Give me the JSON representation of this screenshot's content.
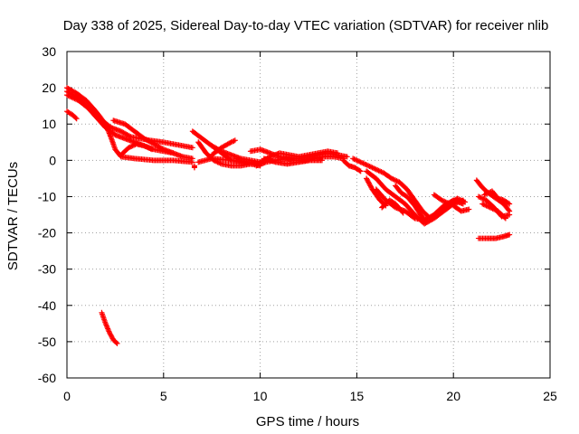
{
  "chart_data": {
    "type": "scatter",
    "title": "Day 338 of 2025, Sidereal Day-to-day VTEC variation (SDTVAR) for receiver nlib",
    "xlabel": "GPS time / hours",
    "ylabel": "SDTVAR / TECUs",
    "xlim": [
      0,
      25
    ],
    "ylim": [
      -60,
      30
    ],
    "xticks": [
      0,
      5,
      10,
      15,
      20,
      25
    ],
    "yticks": [
      -60,
      -50,
      -40,
      -30,
      -20,
      -10,
      0,
      10,
      20,
      30
    ],
    "grid": true,
    "marker": "+",
    "series": [
      {
        "name": "SDTVAR",
        "color": "#ff0000",
        "tracks": [
          [
            [
              0.0,
              13.5
            ],
            [
              0.3,
              12.5
            ],
            [
              0.5,
              11.5
            ]
          ],
          [
            [
              0.0,
              20.0
            ],
            [
              0.5,
              18.5
            ],
            [
              1.0,
              16.5
            ],
            [
              1.5,
              13.5
            ],
            [
              2.0,
              10.0
            ],
            [
              2.3,
              6.0
            ],
            [
              2.5,
              3.0
            ],
            [
              2.8,
              1.0
            ],
            [
              3.5,
              0.5
            ],
            [
              4.5,
              0.0
            ],
            [
              5.5,
              0.0
            ],
            [
              6.5,
              -0.5
            ]
          ],
          [
            [
              0.0,
              19.0
            ],
            [
              0.5,
              17.5
            ],
            [
              1.0,
              15.0
            ],
            [
              1.5,
              12.0
            ],
            [
              2.0,
              9.0
            ],
            [
              2.5,
              7.0
            ],
            [
              3.0,
              6.0
            ],
            [
              3.5,
              5.0
            ],
            [
              4.0,
              4.0
            ],
            [
              4.5,
              3.0
            ],
            [
              5.0,
              2.5
            ],
            [
              5.5,
              2.0
            ],
            [
              6.0,
              1.0
            ],
            [
              6.5,
              0.5
            ]
          ],
          [
            [
              0.0,
              18.0
            ],
            [
              0.6,
              16.5
            ],
            [
              1.2,
              14.0
            ],
            [
              1.8,
              11.0
            ],
            [
              2.3,
              9.0
            ],
            [
              2.8,
              8.0
            ],
            [
              3.3,
              6.5
            ],
            [
              3.8,
              6.0
            ],
            [
              4.3,
              5.5
            ],
            [
              5.0,
              5.0
            ],
            [
              5.5,
              4.5
            ],
            [
              6.0,
              4.0
            ],
            [
              6.5,
              3.5
            ]
          ],
          [
            [
              2.4,
              11.0
            ],
            [
              3.0,
              10.0
            ],
            [
              3.5,
              8.0
            ],
            [
              4.0,
              6.0
            ],
            [
              4.5,
              4.5
            ],
            [
              5.0,
              3.0
            ],
            [
              5.5,
              2.0
            ]
          ],
          [
            [
              2.8,
              1.5
            ],
            [
              3.2,
              3.5
            ],
            [
              3.6,
              4.5
            ],
            [
              4.0,
              4.0
            ],
            [
              4.4,
              3.0
            ]
          ],
          [
            [
              6.6,
              -1.5
            ],
            [
              6.6,
              -2.0
            ]
          ],
          [
            [
              6.5,
              8.0
            ],
            [
              7.0,
              6.0
            ],
            [
              7.5,
              4.0
            ],
            [
              8.0,
              2.0
            ],
            [
              8.5,
              0.0
            ],
            [
              9.0,
              -0.5
            ],
            [
              9.5,
              -1.0
            ],
            [
              10.0,
              -1.5
            ]
          ],
          [
            [
              6.8,
              5.0
            ],
            [
              7.2,
              2.0
            ],
            [
              7.6,
              0.0
            ],
            [
              8.0,
              -1.0
            ],
            [
              8.5,
              -1.5
            ],
            [
              9.0,
              -1.5
            ],
            [
              9.5,
              -1.0
            ],
            [
              10.0,
              -1.0
            ]
          ],
          [
            [
              7.5,
              4.0
            ],
            [
              8.0,
              2.5
            ],
            [
              8.5,
              1.5
            ],
            [
              9.0,
              0.5
            ],
            [
              9.5,
              0.0
            ],
            [
              10.0,
              -0.5
            ]
          ],
          [
            [
              6.8,
              -0.5
            ],
            [
              7.5,
              0.5
            ],
            [
              8.5,
              0.0
            ],
            [
              9.5,
              -0.5
            ],
            [
              10.0,
              -1.0
            ]
          ],
          [
            [
              7.5,
              1.5
            ],
            [
              8.0,
              3.5
            ],
            [
              8.5,
              5.0
            ],
            [
              8.7,
              5.5
            ]
          ],
          [
            [
              1.8,
              -42.0
            ],
            [
              2.0,
              -45.0
            ],
            [
              2.2,
              -47.5
            ],
            [
              2.4,
              -49.5
            ],
            [
              2.6,
              -50.5
            ]
          ],
          [
            [
              9.5,
              2.5
            ],
            [
              10.0,
              3.0
            ],
            [
              10.5,
              2.0
            ],
            [
              11.0,
              1.0
            ],
            [
              11.5,
              0.5
            ],
            [
              12.0,
              0.5
            ],
            [
              12.5,
              1.0
            ],
            [
              13.0,
              1.5
            ],
            [
              13.5,
              2.0
            ],
            [
              14.0,
              1.5
            ],
            [
              14.5,
              1.0
            ]
          ],
          [
            [
              9.8,
              -1.5
            ],
            [
              10.3,
              -0.5
            ],
            [
              10.8,
              0.0
            ],
            [
              11.3,
              0.5
            ],
            [
              11.8,
              0.0
            ],
            [
              12.3,
              0.0
            ],
            [
              12.8,
              0.5
            ],
            [
              13.3,
              1.0
            ],
            [
              13.8,
              1.0
            ],
            [
              14.3,
              0.5
            ]
          ],
          [
            [
              10.0,
              -0.5
            ],
            [
              10.5,
              1.0
            ],
            [
              11.0,
              2.0
            ],
            [
              11.5,
              1.5
            ],
            [
              12.0,
              1.0
            ],
            [
              12.5,
              1.5
            ],
            [
              13.0,
              2.0
            ],
            [
              13.5,
              2.5
            ],
            [
              14.0,
              2.0
            ]
          ],
          [
            [
              10.2,
              0.5
            ],
            [
              10.8,
              -0.5
            ],
            [
              11.4,
              -1.0
            ],
            [
              12.0,
              -0.5
            ],
            [
              12.6,
              0.0
            ],
            [
              13.2,
              0.0
            ]
          ],
          [
            [
              14.3,
              0.0
            ],
            [
              14.6,
              -1.5
            ],
            [
              14.9,
              -2.0
            ],
            [
              15.2,
              -3.0
            ]
          ],
          [
            [
              14.8,
              0.5
            ],
            [
              15.2,
              -0.5
            ],
            [
              15.6,
              -1.5
            ],
            [
              16.0,
              -2.5
            ],
            [
              16.4,
              -3.5
            ],
            [
              16.8,
              -5.0
            ],
            [
              17.2,
              -6.0
            ],
            [
              17.6,
              -8.0
            ],
            [
              18.0,
              -11.0
            ],
            [
              18.4,
              -14.0
            ],
            [
              18.8,
              -16.0
            ],
            [
              19.2,
              -14.0
            ],
            [
              19.6,
              -13.0
            ],
            [
              20.0,
              -11.0
            ],
            [
              20.5,
              -12.0
            ]
          ],
          [
            [
              15.5,
              -3.0
            ],
            [
              16.0,
              -5.0
            ],
            [
              16.5,
              -8.0
            ],
            [
              17.0,
              -10.0
            ],
            [
              17.5,
              -12.0
            ],
            [
              18.0,
              -15.0
            ],
            [
              18.5,
              -17.5
            ],
            [
              19.0,
              -16.0
            ],
            [
              19.5,
              -14.0
            ],
            [
              20.0,
              -12.0
            ],
            [
              20.5,
              -11.0
            ]
          ],
          [
            [
              16.0,
              -8.0
            ],
            [
              16.5,
              -11.0
            ],
            [
              17.0,
              -13.0
            ],
            [
              17.5,
              -14.0
            ],
            [
              18.0,
              -16.0
            ],
            [
              18.5,
              -16.5
            ],
            [
              19.0,
              -15.0
            ],
            [
              19.5,
              -12.5
            ],
            [
              20.0,
              -11.0
            ]
          ],
          [
            [
              16.3,
              -13.0
            ],
            [
              16.7,
              -11.0
            ],
            [
              17.0,
              -12.0
            ],
            [
              17.4,
              -14.5
            ]
          ],
          [
            [
              15.5,
              -5.0
            ],
            [
              15.8,
              -8.0
            ],
            [
              16.2,
              -11.0
            ],
            [
              16.5,
              -12.5
            ]
          ],
          [
            [
              17.0,
              -7.0
            ],
            [
              17.3,
              -9.0
            ],
            [
              17.6,
              -10.0
            ],
            [
              18.0,
              -12.5
            ],
            [
              18.3,
              -15.0
            ],
            [
              18.6,
              -17.0
            ]
          ],
          [
            [
              19.0,
              -9.5
            ],
            [
              19.4,
              -11.0
            ],
            [
              19.8,
              -12.0
            ],
            [
              20.2,
              -10.5
            ],
            [
              20.6,
              -11.5
            ]
          ],
          [
            [
              20.0,
              -12.5
            ],
            [
              20.4,
              -14.0
            ],
            [
              20.8,
              -13.5
            ]
          ],
          [
            [
              21.2,
              -5.5
            ],
            [
              21.5,
              -7.5
            ],
            [
              21.8,
              -9.0
            ],
            [
              22.2,
              -10.5
            ],
            [
              22.6,
              -12.0
            ],
            [
              22.9,
              -14.0
            ]
          ],
          [
            [
              21.3,
              -10.0
            ],
            [
              21.7,
              -11.0
            ],
            [
              22.1,
              -13.0
            ],
            [
              22.5,
              -15.5
            ],
            [
              22.9,
              -15.0
            ]
          ],
          [
            [
              21.5,
              -12.0
            ],
            [
              21.9,
              -13.0
            ],
            [
              22.3,
              -14.0
            ],
            [
              22.7,
              -16.0
            ]
          ],
          [
            [
              21.6,
              -9.5
            ],
            [
              22.0,
              -8.5
            ],
            [
              22.3,
              -10.5
            ],
            [
              22.6,
              -11.0
            ],
            [
              22.9,
              -12.0
            ]
          ],
          [
            [
              21.3,
              -21.5
            ],
            [
              21.8,
              -21.5
            ],
            [
              22.2,
              -21.5
            ],
            [
              22.6,
              -21.0
            ],
            [
              22.9,
              -20.5
            ]
          ]
        ]
      }
    ]
  }
}
